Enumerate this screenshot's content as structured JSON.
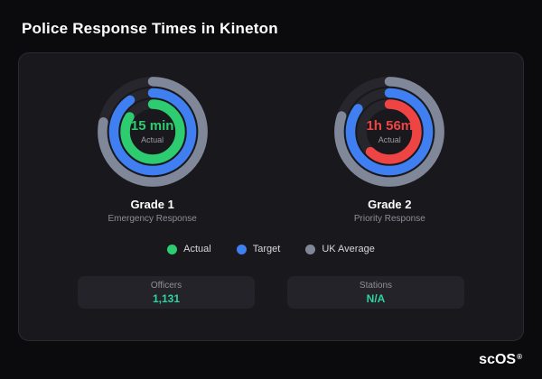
{
  "page": {
    "title": "Police Response Times in Kineton"
  },
  "brand": {
    "logo": "scOS",
    "mark": "®"
  },
  "colors": {
    "background": "#0b0b0d",
    "card": "#19191d",
    "track": "#26262c",
    "actual_grade1": "#2ecc71",
    "actual_grade2": "#ef4444",
    "target": "#3f7ff2",
    "uk_average": "#7f8798",
    "value_accent": "#2dd4a0"
  },
  "gauges": [
    {
      "id": "grade-1",
      "value_label": "15 min",
      "sub_label": "Actual",
      "title": "Grade 1",
      "subtitle": "Emergency Response",
      "value_color": "#2ecc71",
      "rings": [
        {
          "name": "uk-average",
          "color": "#7f8798",
          "fraction": 0.78
        },
        {
          "name": "target",
          "color": "#3f7ff2",
          "fraction": 0.9
        },
        {
          "name": "actual",
          "color": "#2ecc71",
          "fraction": 0.84
        }
      ]
    },
    {
      "id": "grade-2",
      "value_label": "1h 56m",
      "sub_label": "Actual",
      "title": "Grade 2",
      "subtitle": "Priority Response",
      "value_color": "#ef4444",
      "rings": [
        {
          "name": "uk-average",
          "color": "#7f8798",
          "fraction": 0.8
        },
        {
          "name": "target",
          "color": "#3f7ff2",
          "fraction": 0.85
        },
        {
          "name": "actual",
          "color": "#ef4444",
          "fraction": 0.62
        }
      ]
    }
  ],
  "legend": [
    {
      "label": "Actual",
      "color": "#2ecc71"
    },
    {
      "label": "Target",
      "color": "#3f7ff2"
    },
    {
      "label": "UK Average",
      "color": "#7f8798"
    }
  ],
  "stats": [
    {
      "label": "Officers",
      "value": "1,131"
    },
    {
      "label": "Stations",
      "value": "N/A"
    }
  ],
  "chart_data": [
    {
      "type": "pie",
      "variant": "concentric-gauge",
      "title": "Grade 1 — Emergency Response",
      "center_value": "15 min",
      "center_sublabel": "Actual",
      "series": [
        {
          "name": "Actual",
          "fraction": 0.84,
          "color": "#2ecc71"
        },
        {
          "name": "Target",
          "fraction": 0.9,
          "color": "#3f7ff2"
        },
        {
          "name": "UK Average",
          "fraction": 0.78,
          "color": "#7f8798"
        }
      ],
      "legend_position": "bottom-center"
    },
    {
      "type": "pie",
      "variant": "concentric-gauge",
      "title": "Grade 2 — Priority Response",
      "center_value": "1h 56m",
      "center_sublabel": "Actual",
      "series": [
        {
          "name": "Actual",
          "fraction": 0.62,
          "color": "#ef4444"
        },
        {
          "name": "Target",
          "fraction": 0.85,
          "color": "#3f7ff2"
        },
        {
          "name": "UK Average",
          "fraction": 0.8,
          "color": "#7f8798"
        }
      ],
      "legend_position": "bottom-center"
    }
  ]
}
